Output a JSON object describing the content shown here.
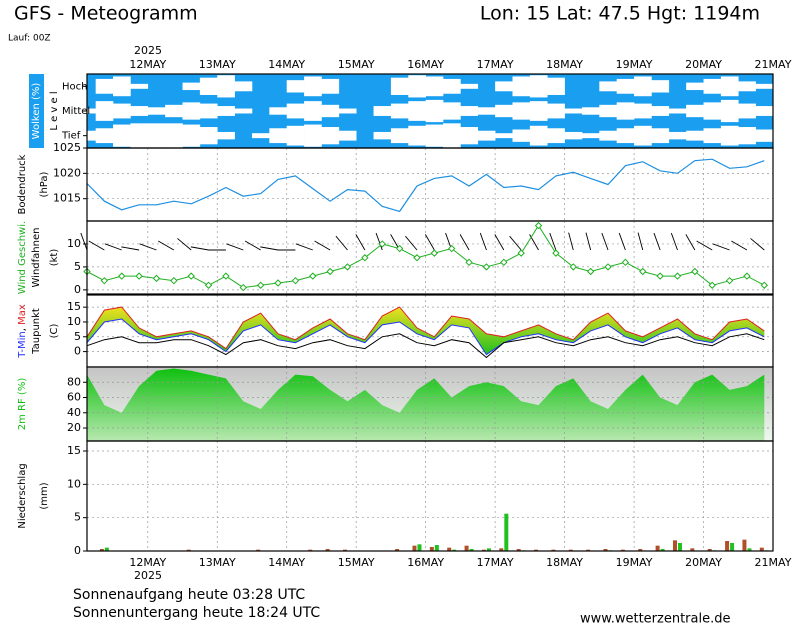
{
  "header": {
    "title": "GFS - Meteogramm",
    "location": "Lon: 15 Lat: 47.5 Hgt: 1194m",
    "run": "Lauf: 00Z"
  },
  "x_axis": {
    "year": "2025",
    "xlim": [
      0.125,
      10
    ],
    "xticks": [
      {
        "value": 1,
        "label": "12MAY"
      },
      {
        "value": 2,
        "label": "13MAY"
      },
      {
        "value": 3,
        "label": "14MAY"
      },
      {
        "value": 4,
        "label": "15MAY"
      },
      {
        "value": 5,
        "label": "16MAY"
      },
      {
        "value": 6,
        "label": "17MAY"
      },
      {
        "value": 7,
        "label": "18MAY"
      },
      {
        "value": 8,
        "label": "19MAY"
      },
      {
        "value": 9,
        "label": "20MAY"
      },
      {
        "value": 10,
        "label": "21MAY"
      }
    ],
    "x": [
      0.125,
      0.375,
      0.625,
      0.875,
      1.125,
      1.375,
      1.625,
      1.875,
      2.125,
      2.375,
      2.625,
      2.875,
      3.125,
      3.375,
      3.625,
      3.875,
      4.125,
      4.375,
      4.625,
      4.875,
      5.125,
      5.375,
      5.625,
      5.875,
      6.125,
      6.375,
      6.625,
      6.875,
      7.125,
      7.375,
      7.625,
      7.875,
      8.125,
      8.375,
      8.625,
      8.875,
      9.125,
      9.375,
      9.625,
      9.875
    ]
  },
  "chart_data": [
    {
      "type": "cloud",
      "ylabel": "Wolken (%)",
      "level_label": "L e v e l",
      "background": "#1a9ff0",
      "color": "#ffffff",
      "ylim": [
        0,
        100
      ],
      "series": [
        {
          "name": "Hoch",
          "values": [
            0,
            60,
            80,
            20,
            0,
            0,
            30,
            70,
            90,
            40,
            0,
            0,
            50,
            80,
            60,
            0,
            0,
            0,
            70,
            90,
            80,
            60,
            20,
            0,
            40,
            80,
            90,
            70,
            0,
            0,
            40,
            60,
            80,
            50,
            0,
            30,
            60,
            80,
            40,
            20
          ]
        },
        {
          "name": "Mittel",
          "values": [
            20,
            80,
            60,
            40,
            30,
            50,
            70,
            60,
            40,
            20,
            0,
            30,
            60,
            80,
            50,
            20,
            0,
            40,
            60,
            80,
            90,
            70,
            40,
            30,
            50,
            70,
            80,
            60,
            20,
            30,
            50,
            70,
            60,
            40,
            20,
            50,
            70,
            90,
            60,
            40
          ]
        },
        {
          "name": "Tief",
          "values": [
            40,
            60,
            90,
            100,
            100,
            100,
            90,
            70,
            30,
            0,
            20,
            60,
            80,
            90,
            70,
            40,
            0,
            30,
            60,
            80,
            90,
            100,
            70,
            40,
            20,
            50,
            80,
            60,
            30,
            20,
            40,
            60,
            80,
            60,
            30,
            40,
            60,
            80,
            70,
            50
          ]
        }
      ]
    },
    {
      "type": "line",
      "ylabel": [
        "Bodendruck",
        "(hPa)"
      ],
      "color": "#1e8fe0",
      "values": [
        1018,
        1014.5,
        1012.8,
        1013.8,
        1013.8,
        1014.5,
        1014,
        1015.5,
        1017.2,
        1015.5,
        1016,
        1018.8,
        1019.5,
        1017,
        1014.5,
        1016.8,
        1016.5,
        1013.5,
        1012.5,
        1017.5,
        1019,
        1019.5,
        1017.5,
        1019.8,
        1017.2,
        1017.5,
        1016.8,
        1019.5,
        1020.2,
        1019,
        1017.8,
        1021.5,
        1022.3,
        1020.5,
        1020,
        1022.5,
        1022.8,
        1021,
        1021.3,
        1022.5
      ],
      "ylim": [
        1010.6,
        1025
      ],
      "yticks": [
        1015,
        1020,
        1025
      ]
    },
    {
      "type": "wind",
      "ylabel": [
        "Wind Geschwi.",
        "Windfahnen",
        "(kt)"
      ],
      "color": "#20b020",
      "values": [
        4,
        2,
        3,
        3,
        2.5,
        2,
        3,
        1,
        3,
        0.5,
        1,
        1.5,
        2,
        3,
        4,
        5,
        7,
        10,
        9,
        7,
        8,
        9,
        6,
        5,
        6,
        8,
        14,
        8,
        5,
        4,
        5,
        6,
        4,
        3,
        3,
        4,
        1,
        2,
        3,
        1
      ],
      "directions": [
        340,
        300,
        290,
        280,
        290,
        300,
        310,
        280,
        270,
        290,
        300,
        280,
        270,
        290,
        300,
        320,
        330,
        340,
        330,
        320,
        330,
        340,
        330,
        340,
        330,
        320,
        330,
        340,
        345,
        345,
        340,
        340,
        345,
        340,
        340,
        330,
        300,
        290,
        300,
        310
      ],
      "ylim": [
        -0.9,
        15
      ],
      "yticks": [
        0,
        5,
        10
      ]
    },
    {
      "type": "temperature",
      "separator": ", ",
      "unit": "(C)",
      "series": [
        {
          "name": "T-Min",
          "color": "#2030ff",
          "values": [
            3,
            10,
            11,
            6,
            4,
            5,
            6,
            4,
            0,
            7,
            9,
            4,
            3,
            6,
            9,
            5,
            3,
            9,
            10,
            6,
            4,
            9,
            8,
            -1,
            3,
            5,
            6,
            4,
            3,
            7,
            9,
            5,
            3,
            6,
            8,
            4,
            3,
            7,
            8,
            5
          ]
        },
        {
          "name": "Max",
          "color": "#e02020",
          "values": [
            5,
            14,
            15,
            8,
            5,
            6,
            7,
            5,
            1,
            10,
            13,
            6,
            4,
            8,
            11,
            6,
            4,
            12,
            15,
            8,
            5,
            12,
            11,
            6,
            5,
            7,
            9,
            6,
            4,
            10,
            13,
            7,
            5,
            8,
            11,
            6,
            4,
            10,
            11,
            7
          ]
        },
        {
          "name": "Taupunkt",
          "color": "#000000",
          "values": [
            2,
            4,
            5,
            3,
            3,
            4,
            4,
            2,
            -1,
            3,
            4,
            2,
            1,
            3,
            4,
            2,
            1,
            5,
            6,
            3,
            2,
            4,
            3,
            -2,
            3,
            4,
            5,
            3,
            2,
            4,
            5,
            3,
            2,
            4,
            5,
            3,
            2,
            5,
            6,
            4
          ]
        }
      ],
      "ylim": [
        -5.2,
        19.1
      ],
      "yticks": [
        0,
        5,
        10,
        15
      ]
    },
    {
      "type": "area",
      "ylabel": "2m RF (%)",
      "color": "#10c010",
      "values": [
        90,
        50,
        40,
        75,
        95,
        98,
        95,
        90,
        85,
        55,
        45,
        70,
        90,
        88,
        70,
        55,
        70,
        50,
        40,
        70,
        85,
        60,
        75,
        80,
        75,
        55,
        50,
        75,
        85,
        55,
        45,
        70,
        90,
        60,
        50,
        80,
        90,
        70,
        75,
        90
      ],
      "ylim": [
        3,
        100
      ],
      "yticks": [
        20,
        40,
        60,
        80
      ]
    },
    {
      "type": "bar",
      "ylabel": [
        "Niederschlag",
        "(mm)"
      ],
      "series": [
        {
          "color": "#b0502a",
          "values": [
            0,
            0.3,
            0,
            0,
            0,
            0,
            0.2,
            0,
            0,
            0,
            0.2,
            0,
            0,
            0.2,
            0.3,
            0.2,
            0,
            0,
            0.3,
            0.8,
            0.6,
            0.5,
            0.8,
            0.2,
            0.4,
            0.3,
            0.2,
            0.2,
            0.2,
            0.2,
            0.3,
            0.2,
            0.3,
            0.8,
            1.6,
            0.4,
            0.3,
            1.5,
            1.7,
            0.5
          ]
        },
        {
          "color": "#20c020",
          "values": [
            0,
            0.5,
            0,
            0,
            0,
            0,
            0,
            0,
            0,
            0,
            0,
            0,
            0,
            0,
            0,
            0,
            0,
            0,
            0,
            1.0,
            0.9,
            0.2,
            0.3,
            0.4,
            5.6,
            0.1,
            0,
            0,
            0,
            0,
            0.1,
            0,
            0,
            0.3,
            1.2,
            0,
            0.1,
            1.2,
            0.4,
            0.1
          ]
        }
      ],
      "ylim": [
        0,
        16.5
      ],
      "yticks": [
        0,
        5,
        10,
        15
      ]
    }
  ],
  "footer": {
    "sunrise": "Sonnenaufgang heute 03:28 UTC",
    "sunset": "Sonnenuntergang heute 18:24 UTC",
    "source": "www.wetterzentrale.de"
  }
}
